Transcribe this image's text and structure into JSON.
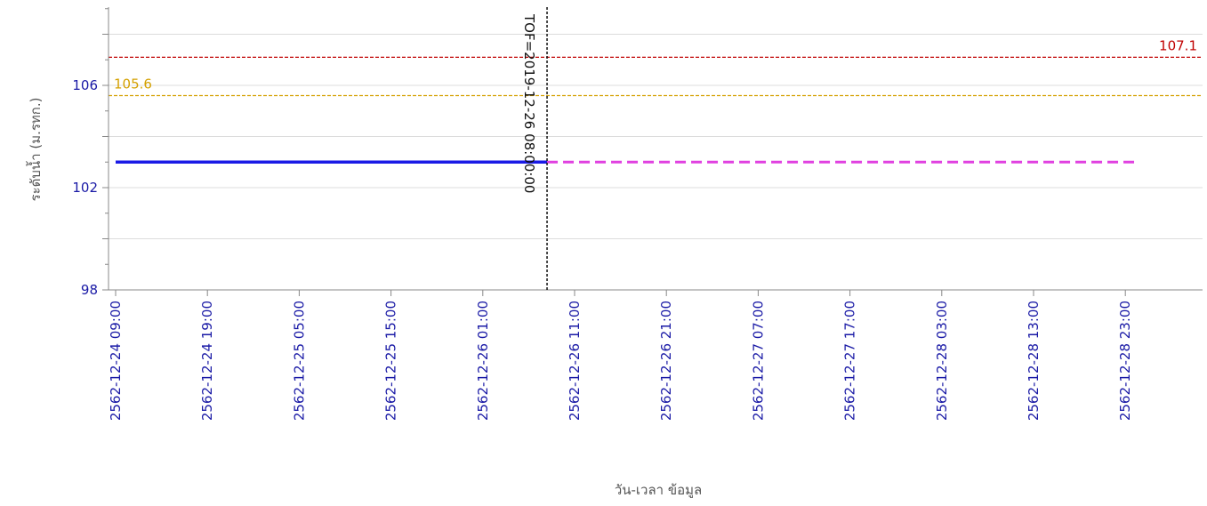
{
  "chart_data": {
    "type": "line",
    "xlabel": "วัน-เวลา ข้อมูล",
    "ylabel": "ระดับน้ำ (ม.รทก.)",
    "ylim": [
      98,
      110
    ],
    "y_ticks": [
      98,
      102,
      106
    ],
    "grid": true,
    "x_range": [
      "2562-12-24 09:00",
      "2562-12-28 23:00"
    ],
    "x_start_hours": 0,
    "x_end_hours": 119,
    "x_ticks": [
      "2562-12-24 09:00",
      "2562-12-24 19:00",
      "2562-12-25 05:00",
      "2562-12-25 15:00",
      "2562-12-26 01:00",
      "2562-12-26 11:00",
      "2562-12-26 21:00",
      "2562-12-27 07:00",
      "2562-12-27 17:00",
      "2562-12-28 03:00",
      "2562-12-28 13:00",
      "2562-12-28 23:00"
    ],
    "reference_lines": [
      {
        "value": 107.1,
        "label": "107.1",
        "color": "#c00000"
      },
      {
        "value": 105.6,
        "label": "105.6",
        "color": "#d4a000"
      }
    ],
    "tof_line": {
      "label": "TOF=2019-12-26 08:00:00",
      "x": "2562-12-26 08:00"
    },
    "series": [
      {
        "color": "#1a1ae6",
        "style": "solid",
        "x": [
          "2562-12-24 09:00",
          "2562-12-26 08:00"
        ],
        "values": [
          103.0,
          103.0
        ]
      },
      {
        "color": "#e040e0",
        "style": "dashed",
        "x": [
          "2562-12-26 08:00",
          "2562-12-28 23:59"
        ],
        "values": [
          103.0,
          103.0
        ]
      }
    ]
  }
}
